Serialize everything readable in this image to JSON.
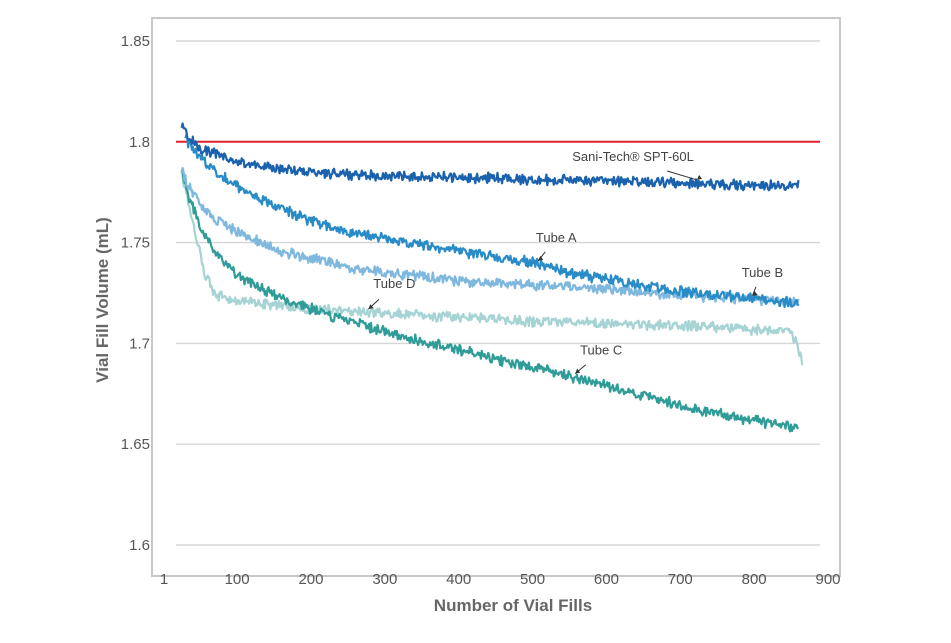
{
  "chart_data": {
    "type": "line",
    "title": "",
    "xlabel": "Number of Vial Fills",
    "ylabel": "Vial Fill Volume (mL)",
    "xlim": [
      1,
      900
    ],
    "ylim": [
      1.6,
      1.85
    ],
    "xticks": [
      1,
      100,
      200,
      300,
      400,
      500,
      600,
      700,
      800,
      900
    ],
    "yticks": [
      1.6,
      1.65,
      1.7,
      1.75,
      1.8,
      1.85
    ],
    "xtick_labels": [
      "1",
      "100",
      "200",
      "300",
      "400",
      "500",
      "600",
      "700",
      "800",
      "900"
    ],
    "ytick_labels": [
      "1.6",
      "1.65",
      "1.7",
      "1.75",
      "1.8",
      "1.85"
    ],
    "grid": "horizontal",
    "legend": "none",
    "reference_line": {
      "y": 1.8,
      "color": "#e0202a"
    },
    "series": [
      {
        "name": "Sani-Tech® SPT-60L",
        "color": "#1a62ad",
        "x": [
          25,
          35,
          50,
          70,
          100,
          150,
          200,
          250,
          300,
          350,
          400,
          450,
          500,
          550,
          600,
          650,
          700,
          750,
          800,
          860
        ],
        "y": [
          1.808,
          1.802,
          1.797,
          1.794,
          1.79,
          1.787,
          1.785,
          1.784,
          1.783,
          1.783,
          1.782,
          1.782,
          1.781,
          1.781,
          1.781,
          1.78,
          1.78,
          1.779,
          1.778,
          1.779
        ]
      },
      {
        "name": "Tube A",
        "color": "#2a8cc7",
        "x": [
          30,
          40,
          60,
          80,
          100,
          150,
          200,
          250,
          300,
          350,
          400,
          450,
          500,
          550,
          600,
          650,
          700,
          750,
          800,
          860
        ],
        "y": [
          1.802,
          1.796,
          1.789,
          1.783,
          1.778,
          1.768,
          1.761,
          1.755,
          1.752,
          1.749,
          1.746,
          1.743,
          1.74,
          1.735,
          1.732,
          1.729,
          1.726,
          1.724,
          1.722,
          1.72
        ]
      },
      {
        "name": "Tube B",
        "color": "#7fb8de",
        "x": [
          25,
          35,
          50,
          70,
          100,
          150,
          200,
          250,
          300,
          350,
          400,
          450,
          500,
          550,
          600,
          650,
          700,
          750,
          800,
          860
        ],
        "y": [
          1.786,
          1.777,
          1.769,
          1.761,
          1.755,
          1.747,
          1.742,
          1.738,
          1.735,
          1.733,
          1.731,
          1.73,
          1.729,
          1.728,
          1.727,
          1.725,
          1.724,
          1.723,
          1.722,
          1.721
        ]
      },
      {
        "name": "Tube C",
        "color": "#2f9c98",
        "x": [
          25,
          35,
          50,
          70,
          100,
          150,
          200,
          250,
          300,
          350,
          400,
          450,
          500,
          550,
          600,
          650,
          700,
          750,
          800,
          860
        ],
        "y": [
          1.786,
          1.772,
          1.758,
          1.745,
          1.734,
          1.724,
          1.717,
          1.711,
          1.706,
          1.701,
          1.697,
          1.692,
          1.688,
          1.684,
          1.679,
          1.674,
          1.669,
          1.665,
          1.662,
          1.658
        ]
      },
      {
        "name": "Tube D",
        "color": "#a6d3d3",
        "x": [
          25,
          35,
          45,
          55,
          70,
          100,
          150,
          200,
          250,
          300,
          350,
          400,
          450,
          500,
          550,
          600,
          650,
          700,
          750,
          800,
          850,
          858,
          866
        ],
        "y": [
          1.784,
          1.768,
          1.752,
          1.736,
          1.724,
          1.721,
          1.719,
          1.717,
          1.716,
          1.715,
          1.714,
          1.713,
          1.712,
          1.711,
          1.711,
          1.71,
          1.709,
          1.709,
          1.708,
          1.707,
          1.706,
          1.7,
          1.69
        ]
      }
    ],
    "annotations": [
      {
        "text": "Sani-Tech® SPT-60L",
        "series": "Sani-Tech® SPT-60L",
        "at_x": 720
      },
      {
        "text": "Tube A",
        "series": "Tube A",
        "at_x": 505
      },
      {
        "text": "Tube B",
        "series": "Tube B",
        "at_x": 795
      },
      {
        "text": "Tube C",
        "series": "Tube C",
        "at_x": 555
      },
      {
        "text": "Tube D",
        "series": "Tube D",
        "at_x": 275
      }
    ]
  }
}
